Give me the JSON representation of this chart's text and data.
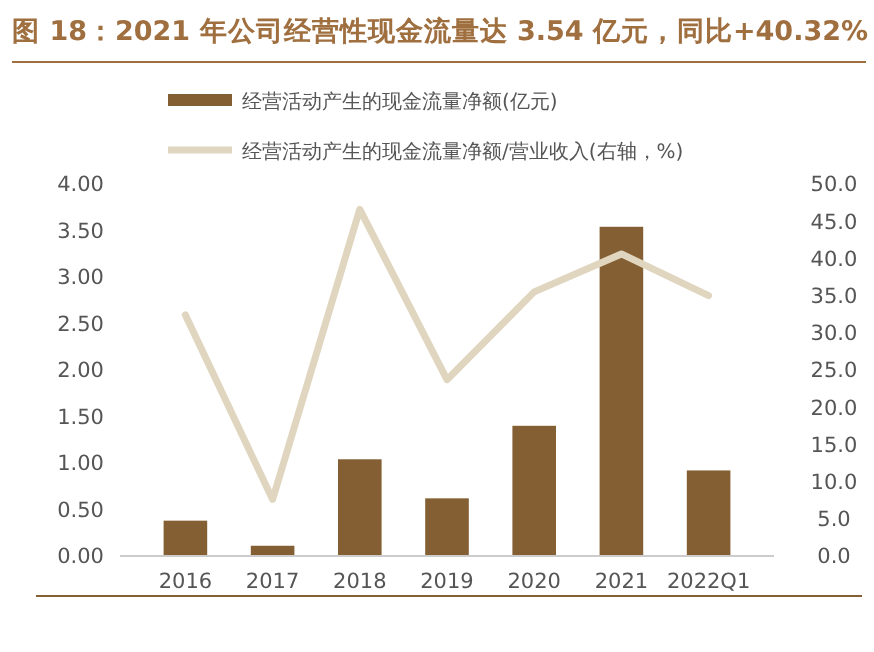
{
  "chart_data": {
    "type": "bar",
    "title": "图 18：2021 年公司经营性现金流量达 3.54 亿元，同比+40.32%",
    "categories": [
      "2016",
      "2017",
      "2018",
      "2019",
      "2020",
      "2021",
      "2022Q1"
    ],
    "series": [
      {
        "name": "经营活动产生的现金流量净额(亿元)",
        "color": "#845f34",
        "values": [
          0.38,
          0.11,
          1.04,
          0.62,
          1.4,
          3.54,
          0.92
        ]
      },
      {
        "name": "经营活动产生的现金流量净额/营业收入(右轴，%)",
        "type": "line",
        "axis": "y2",
        "color": "#e0d5be",
        "values": [
          32.4,
          7.6,
          46.6,
          23.7,
          35.5,
          40.6,
          35.0
        ]
      }
    ],
    "ylim": [
      0,
      4
    ],
    "yticks": [
      {
        "value": 0,
        "label": "0.00"
      },
      {
        "value": 0.5,
        "label": "0.50"
      },
      {
        "value": 1,
        "label": "1.00"
      },
      {
        "value": 1.5,
        "label": "1.50"
      },
      {
        "value": 2,
        "label": "2.00"
      },
      {
        "value": 2.5,
        "label": "2.50"
      },
      {
        "value": 3,
        "label": "3.00"
      },
      {
        "value": 3.5,
        "label": "3.50"
      },
      {
        "value": 4,
        "label": "4.00"
      }
    ],
    "y2lim": [
      0,
      50
    ],
    "y2ticks": [
      {
        "value": 0,
        "label": "0.0"
      },
      {
        "value": 5,
        "label": "5.0"
      },
      {
        "value": 10,
        "label": "10.0"
      },
      {
        "value": 15,
        "label": "15.0"
      },
      {
        "value": 20,
        "label": "20.0"
      },
      {
        "value": 25,
        "label": "25.0"
      },
      {
        "value": 30,
        "label": "30.0"
      },
      {
        "value": 35,
        "label": "35.0"
      },
      {
        "value": 40,
        "label": "40.0"
      },
      {
        "value": 45,
        "label": "45.0"
      },
      {
        "value": 50,
        "label": "50.0"
      }
    ],
    "legend": "top",
    "grid": false
  }
}
